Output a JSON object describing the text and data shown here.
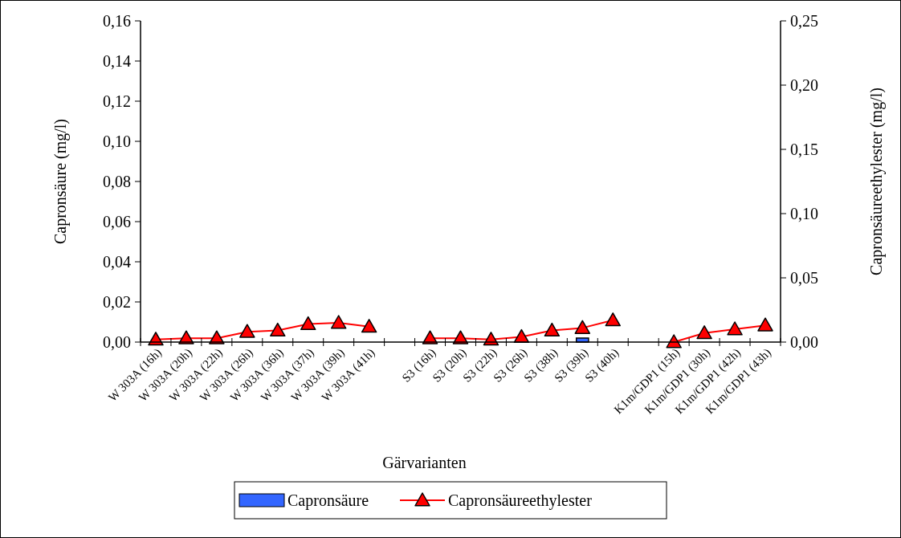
{
  "chart_data": {
    "type": "bar",
    "xlabel": "Gärvarianten",
    "ylabel": "Capronsäure (mg/l)",
    "y2label": "Capronsäureethylester (mg/l)",
    "categories": [
      "W 303A (16h)",
      "W 303A (20h)",
      "W 303A (22h)",
      "W 303A (26h)",
      "W 303A (36h)",
      "W 303A (37h)",
      "W 303A (39h)",
      "W 303A (41h)",
      null,
      "S3 (16h)",
      "S3 (20h)",
      "S3 (22h)",
      "S3 (26h)",
      "S3 (38h)",
      "S3 (39h)",
      "S3 (40h)",
      null,
      "K1m/GDP1 (15h)",
      "K1m/GDP1 (30h)",
      "K1m/GDP1 (42h)",
      "K1m/GDP1 (43h)"
    ],
    "series": [
      {
        "name": "Capronsäure",
        "color": "#3366ff",
        "values": [
          null,
          null,
          null,
          null,
          null,
          null,
          null,
          null,
          null,
          null,
          null,
          null,
          null,
          null,
          0.002,
          null,
          null,
          null,
          null,
          null,
          null
        ]
      },
      {
        "name": "Capronsäureethylester",
        "type": "line",
        "axis": "y2",
        "color": "#ff0000",
        "marker": "triangle",
        "values": [
          0.002,
          0.003,
          0.003,
          0.008,
          0.009,
          0.014,
          0.015,
          0.012,
          null,
          0.003,
          0.003,
          0.002,
          0.004,
          0.009,
          0.011,
          0.017,
          null,
          0.0,
          0.007,
          0.01,
          0.013
        ]
      }
    ],
    "ylim": [
      0,
      0.16
    ],
    "yticks": [
      {
        "value": 0,
        "label": "0,00"
      },
      {
        "value": 0.02,
        "label": "0,02"
      },
      {
        "value": 0.04,
        "label": "0,04"
      },
      {
        "value": 0.06,
        "label": "0,06"
      },
      {
        "value": 0.08,
        "label": "0,08"
      },
      {
        "value": 0.1,
        "label": "0,10"
      },
      {
        "value": 0.12,
        "label": "0,12"
      },
      {
        "value": 0.14,
        "label": "0,14"
      },
      {
        "value": 0.16,
        "label": "0,16"
      }
    ],
    "y2lim": [
      0,
      0.25
    ],
    "y2ticks": [
      {
        "value": 0,
        "label": "0,00"
      },
      {
        "value": 0.05,
        "label": "0,05"
      },
      {
        "value": 0.1,
        "label": "0,10"
      },
      {
        "value": 0.15,
        "label": "0,15"
      },
      {
        "value": 0.2,
        "label": "0,20"
      },
      {
        "value": 0.25,
        "label": "0,25"
      }
    ],
    "grid": false,
    "legend": "bottom"
  }
}
